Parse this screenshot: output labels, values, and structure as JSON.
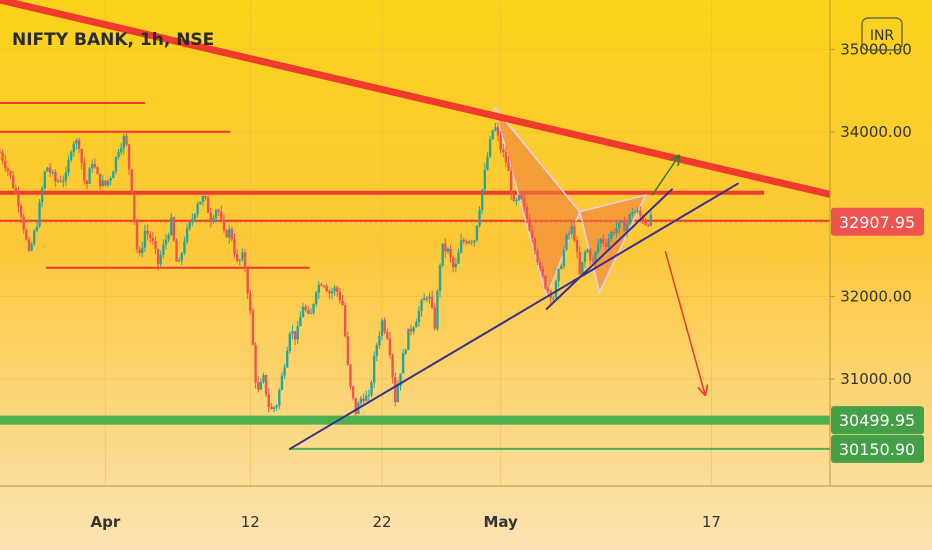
{
  "chart_data": {
    "type": "candlestick",
    "title": "NIFTY BANK, 1h, NSE",
    "currency": "INR",
    "x_ticks": [
      {
        "label": "Apr",
        "bold": true,
        "x": 0
      },
      {
        "label": "12",
        "bold": false,
        "x": 11
      },
      {
        "label": "22",
        "bold": false,
        "x": 21
      },
      {
        "label": "May",
        "bold": true,
        "x": 30
      },
      {
        "label": "17",
        "bold": false,
        "x": 46
      }
    ],
    "x_range": [
      -8,
      55
    ],
    "y_range": [
      29700,
      35600
    ],
    "y_ticks": [
      {
        "label": "35000.00",
        "value": 35000
      },
      {
        "label": "34000.00",
        "value": 34000
      },
      {
        "label": "32000.00",
        "value": 32000
      },
      {
        "label": "31000.00",
        "value": 31000
      }
    ],
    "price_tags": [
      {
        "label": "32907.95",
        "value": 32907.95,
        "color": "#ef5350"
      },
      {
        "label": "30499.95",
        "value": 30499.95,
        "color": "#43a047"
      },
      {
        "label": "30150.90",
        "value": 30150.9,
        "color": "#43a047"
      }
    ],
    "last_price": 32907.95,
    "price_path": [
      [
        -8,
        33750
      ],
      [
        -7.3,
        33500
      ],
      [
        -6.5,
        33100
      ],
      [
        -5.8,
        32500
      ],
      [
        -5.2,
        32900
      ],
      [
        -4.5,
        33600
      ],
      [
        -3.8,
        33400
      ],
      [
        -3,
        33450
      ],
      [
        -2.5,
        33900
      ],
      [
        -2,
        33850
      ],
      [
        -1.5,
        33300
      ],
      [
        -1,
        33650
      ],
      [
        -0.5,
        33400
      ],
      [
        0,
        33350
      ],
      [
        0.5,
        33500
      ],
      [
        1,
        33800
      ],
      [
        1.5,
        33950
      ],
      [
        2,
        33300
      ],
      [
        2.5,
        32400
      ],
      [
        3,
        32800
      ],
      [
        3.5,
        32700
      ],
      [
        4,
        32400
      ],
      [
        4.5,
        32650
      ],
      [
        5,
        32900
      ],
      [
        5.5,
        32300
      ],
      [
        6,
        32700
      ],
      [
        6.5,
        32900
      ],
      [
        7,
        33150
      ],
      [
        7.5,
        33200
      ],
      [
        8,
        32950
      ],
      [
        8.5,
        33100
      ],
      [
        9,
        32750
      ],
      [
        9.5,
        32800
      ],
      [
        10,
        32400
      ],
      [
        10.5,
        32500
      ],
      [
        11,
        31800
      ],
      [
        11.5,
        30800
      ],
      [
        12,
        31000
      ],
      [
        12.5,
        30600
      ],
      [
        13,
        30700
      ],
      [
        13.5,
        31100
      ],
      [
        14,
        31600
      ],
      [
        14.5,
        31500
      ],
      [
        15,
        31900
      ],
      [
        15.5,
        31700
      ],
      [
        16,
        32100
      ],
      [
        16.5,
        32200
      ],
      [
        17,
        32050
      ],
      [
        17.5,
        32100
      ],
      [
        18,
        31900
      ],
      [
        18.5,
        30950
      ],
      [
        19,
        30600
      ],
      [
        19.5,
        30800
      ],
      [
        20,
        30750
      ],
      [
        20.5,
        31350
      ],
      [
        21,
        31700
      ],
      [
        21.5,
        31500
      ],
      [
        22,
        30750
      ],
      [
        22.5,
        31200
      ],
      [
        23,
        31550
      ],
      [
        23.5,
        31700
      ],
      [
        24,
        31900
      ],
      [
        24.5,
        32050
      ],
      [
        25,
        31650
      ],
      [
        25.5,
        32600
      ],
      [
        26,
        32550
      ],
      [
        26.5,
        32300
      ],
      [
        27,
        32650
      ],
      [
        27.5,
        32700
      ],
      [
        28,
        32700
      ],
      [
        28.5,
        33200
      ],
      [
        29,
        33700
      ],
      [
        29.5,
        34100
      ],
      [
        30,
        33800
      ],
      [
        30.5,
        33600
      ],
      [
        31,
        33100
      ],
      [
        31.5,
        33200
      ],
      [
        32,
        32950
      ],
      [
        32.5,
        32700
      ],
      [
        33,
        32300
      ],
      [
        33.5,
        32100
      ],
      [
        34,
        32000
      ],
      [
        34.5,
        32350
      ],
      [
        35,
        32700
      ],
      [
        35.5,
        32850
      ],
      [
        36,
        32250
      ],
      [
        36.5,
        32600
      ],
      [
        37,
        32400
      ],
      [
        37.5,
        32700
      ],
      [
        38,
        32650
      ],
      [
        38.5,
        32800
      ],
      [
        39,
        32850
      ],
      [
        39.5,
        32850
      ],
      [
        40,
        33050
      ],
      [
        40.5,
        33000
      ],
      [
        41,
        32900
      ],
      [
        41.5,
        32950
      ]
    ],
    "horizontal_lines": [
      {
        "value": 34350,
        "x_from": -8,
        "x_to": 3,
        "color": "#f03a2e",
        "width": 2
      },
      {
        "value": 34000,
        "x_from": -8,
        "x_to": 9.5,
        "color": "#f03a2e",
        "width": 2
      },
      {
        "value": 33260,
        "x_from": -8,
        "x_to": 50,
        "color": "#f03a2e",
        "width": 4
      },
      {
        "value": 32920,
        "x_from": -8,
        "x_to": 55,
        "color": "#f03a2e",
        "width": 2
      },
      {
        "value": 32350,
        "x_from": -4.5,
        "x_to": 15.5,
        "color": "#f03a2e",
        "width": 2
      },
      {
        "value": 30499.95,
        "x_from": -8,
        "x_to": 55,
        "color": "#4caf50",
        "width": 9
      },
      {
        "value": 30150.9,
        "x_from": 14,
        "x_to": 55,
        "color": "#4caf50",
        "width": 2
      }
    ],
    "trend_lines": [
      {
        "from": [
          -8,
          35600
        ],
        "to": [
          55,
          33240
        ],
        "color": "#f03a2e",
        "width": 7
      },
      {
        "from": [
          14,
          30150
        ],
        "to": [
          48,
          33370
        ],
        "color": "#3a2f8f",
        "width": 2
      },
      {
        "from": [
          33.5,
          31850
        ],
        "to": [
          43,
          33300
        ],
        "color": "#3a2f8f",
        "width": 2
      }
    ],
    "harmonic_pattern": {
      "points": [
        [
          33.5,
          32000
        ],
        [
          29.5,
          34300
        ],
        [
          36,
          33030
        ],
        [
          37.5,
          32050
        ],
        [
          41,
          33230
        ]
      ],
      "fill": "#f07f3c",
      "stroke": "#e0d0f0"
    },
    "arrows": [
      {
        "from": [
          41.5,
          33230
        ],
        "to": [
          43.5,
          33700
        ],
        "color": "#2e7d32"
      },
      {
        "from": [
          42.5,
          32550
        ],
        "to": [
          45.5,
          30820
        ],
        "color": "#e53935"
      }
    ]
  }
}
